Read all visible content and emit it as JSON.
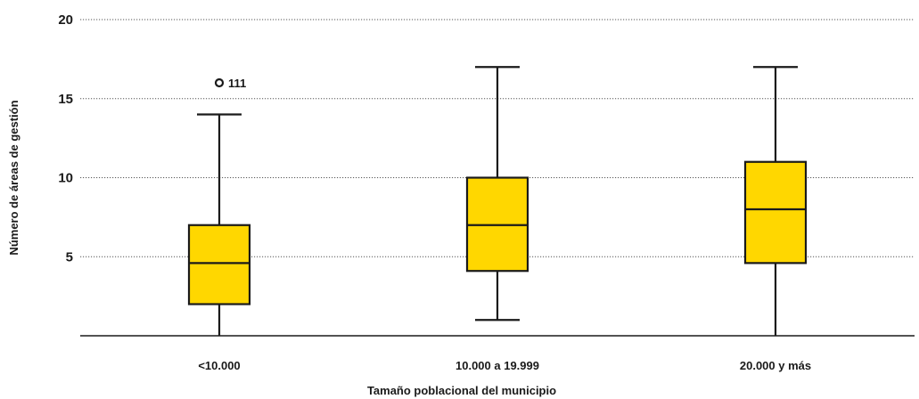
{
  "chart_data": {
    "type": "boxplot",
    "xlabel": "Tamaño poblacional del municipio",
    "ylabel": "Número de áreas de gestión",
    "ylim": [
      0,
      20
    ],
    "yticks": [
      5,
      10,
      15,
      20
    ],
    "yticks_labels": [
      "5",
      "10",
      "15",
      "20"
    ],
    "grid": "horizontal dotted",
    "categories": [
      "<10.000",
      "10.000 a 19.999",
      "20.000 y más"
    ],
    "boxes": [
      {
        "category": "<10.000",
        "min": 0,
        "q1": 2,
        "median": 4.6,
        "q3": 7,
        "max": 14,
        "outliers": [
          {
            "value": 16,
            "label": "111"
          }
        ]
      },
      {
        "category": "10.000 a 19.999",
        "min": 1,
        "q1": 4.1,
        "median": 7,
        "q3": 10,
        "max": 17,
        "outliers": []
      },
      {
        "category": "20.000 y más",
        "min": 0,
        "q1": 4.6,
        "median": 8,
        "q3": 11,
        "max": 17,
        "outliers": []
      }
    ],
    "colors": {
      "box_fill": "#FFD700",
      "stroke": "#1a1a1a",
      "grid": "#555555"
    }
  }
}
